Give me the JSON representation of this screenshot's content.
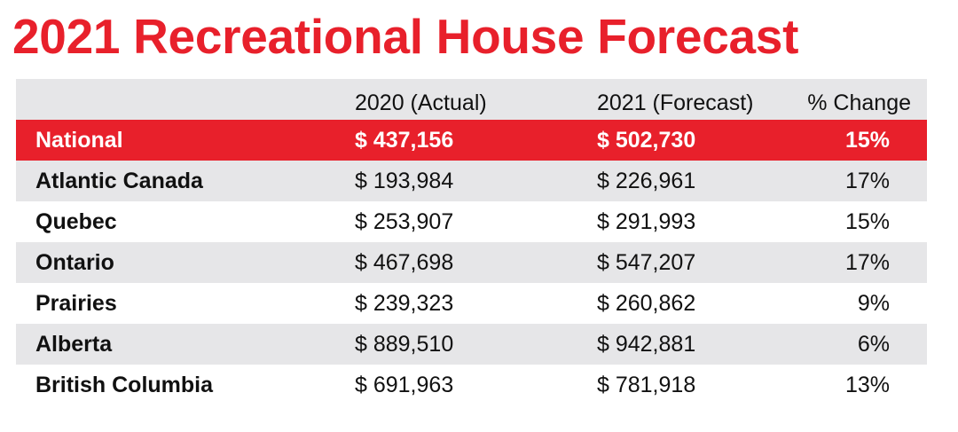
{
  "title": "2021 Recreational House Forecast",
  "colors": {
    "accent": "#e8202b",
    "shade": "#e6e6e8"
  },
  "chart_data": {
    "type": "table",
    "title": "2021 Recreational House Forecast",
    "columns": [
      "",
      "2020 (Actual)",
      "2021 (Forecast)",
      "% Change"
    ],
    "rows": [
      [
        "National",
        "$ 437,156",
        "$ 502,730",
        "15%"
      ],
      [
        "Atlantic Canada",
        "$ 193,984",
        "$ 226,961",
        "17%"
      ],
      [
        "Quebec",
        "$ 253,907",
        "$ 291,993",
        "15%"
      ],
      [
        "Ontario",
        "$ 467,698",
        "$ 547,207",
        "17%"
      ],
      [
        "Prairies",
        "$ 239,323",
        "$ 260,862",
        "9%"
      ],
      [
        "Alberta",
        "$ 889,510",
        "$ 942,881",
        "6%"
      ],
      [
        "British Columbia",
        "$ 691,963",
        "$ 781,918",
        "13%"
      ]
    ],
    "highlight_row": "National"
  }
}
